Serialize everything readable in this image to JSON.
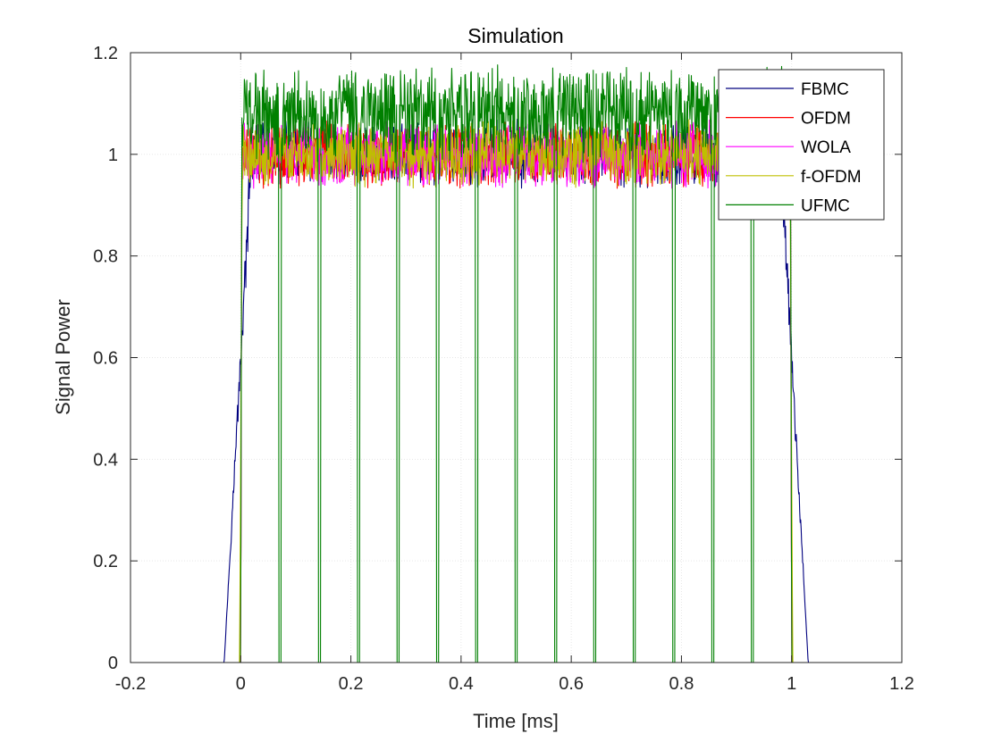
{
  "chart_data": {
    "type": "line",
    "title": "Simulation",
    "xlabel": "Time [ms]",
    "ylabel": "Signal Power",
    "xlim": [
      -0.2,
      1.2
    ],
    "ylim": [
      0,
      1.2
    ],
    "xticks": [
      "-0.2",
      "0",
      "0.2",
      "0.4",
      "0.6",
      "0.8",
      "1",
      "1.2"
    ],
    "yticks": [
      "0",
      "0.2",
      "0.4",
      "0.6",
      "0.8",
      "1",
      "1.2"
    ],
    "grid": true,
    "legend_position": "top-right",
    "series": [
      {
        "name": "FBMC",
        "color": "#00007f",
        "mean_level": 1.0,
        "noise_amplitude": 0.05,
        "rise": [
          -0.03,
          0.02
        ],
        "fall": [
          0.98,
          1.03
        ],
        "notch_times": []
      },
      {
        "name": "OFDM",
        "color": "#ff0000",
        "mean_level": 1.0,
        "noise_amplitude": 0.05,
        "rise": [
          0.0,
          0.002
        ],
        "fall": [
          0.998,
          1.0
        ],
        "notch_times": []
      },
      {
        "name": "WOLA",
        "color": "#ff00ff",
        "mean_level": 1.0,
        "noise_amplitude": 0.05,
        "rise": [
          0.0,
          0.002
        ],
        "fall": [
          0.998,
          1.0
        ],
        "notch_times": []
      },
      {
        "name": "f-OFDM",
        "color": "#bfbf00",
        "mean_level": 1.0,
        "noise_amplitude": 0.05,
        "rise": [
          -0.002,
          0.003
        ],
        "fall": [
          0.997,
          1.002
        ],
        "notch_times": []
      },
      {
        "name": "UFMC",
        "color": "#008000",
        "mean_level": 1.08,
        "noise_amplitude": 0.07,
        "rise": [
          0.0,
          0.002
        ],
        "fall": [
          0.998,
          1.0
        ],
        "notch_times": [
          0.0714,
          0.1429,
          0.2143,
          0.2857,
          0.3571,
          0.4286,
          0.5,
          0.5714,
          0.6429,
          0.7143,
          0.7857,
          0.8571,
          0.9286
        ]
      }
    ]
  }
}
